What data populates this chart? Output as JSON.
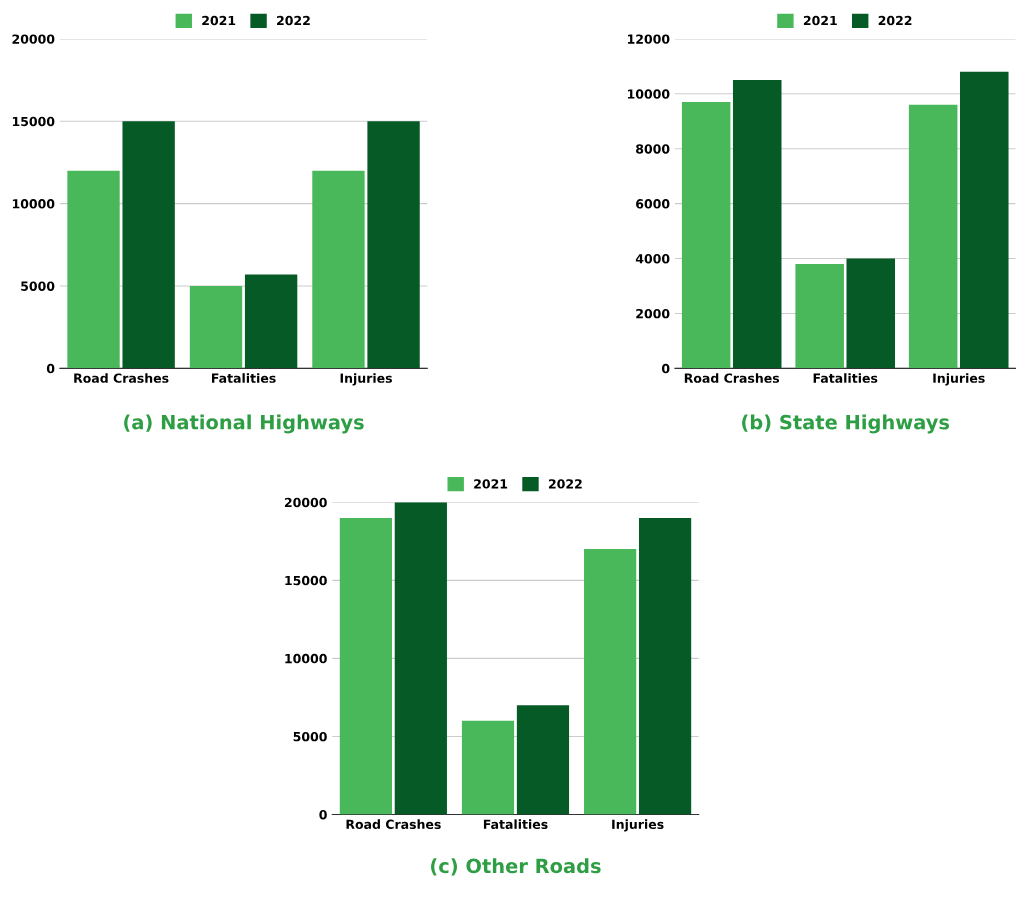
{
  "chart_data": [
    {
      "type": "bar",
      "title": "(a) National Highways",
      "categories": [
        "Road Crashes",
        "Fatalities",
        "Injuries"
      ],
      "series": [
        {
          "name": "2021",
          "color": "#48b85a",
          "values": [
            12000,
            5000,
            12000
          ]
        },
        {
          "name": "2022",
          "color": "#055a25",
          "values": [
            15000,
            5700,
            15000
          ]
        }
      ],
      "ylim": [
        0,
        20000
      ],
      "yticks": [
        0,
        5000,
        10000,
        15000,
        20000
      ],
      "grid": "y",
      "legend": "top"
    },
    {
      "type": "bar",
      "title": "(b) State Highways",
      "categories": [
        "Road Crashes",
        "Fatalities",
        "Injuries"
      ],
      "series": [
        {
          "name": "2021",
          "color": "#48b85a",
          "values": [
            9700,
            3800,
            9600
          ]
        },
        {
          "name": "2022",
          "color": "#055a25",
          "values": [
            10500,
            4000,
            10800
          ]
        }
      ],
      "ylim": [
        0,
        12000
      ],
      "yticks": [
        0,
        2000,
        4000,
        6000,
        8000,
        10000,
        12000
      ],
      "grid": "y",
      "legend": "top"
    },
    {
      "type": "bar",
      "title": "(c) Other Roads",
      "categories": [
        "Road Crashes",
        "Fatalities",
        "Injuries"
      ],
      "series": [
        {
          "name": "2021",
          "color": "#48b85a",
          "values": [
            19000,
            6000,
            17000
          ]
        },
        {
          "name": "2022",
          "color": "#055a25",
          "values": [
            20000,
            7000,
            19000
          ]
        }
      ],
      "ylim": [
        0,
        20000
      ],
      "yticks": [
        0,
        5000,
        10000,
        15000,
        20000
      ],
      "grid": "y",
      "legend": "top"
    }
  ]
}
